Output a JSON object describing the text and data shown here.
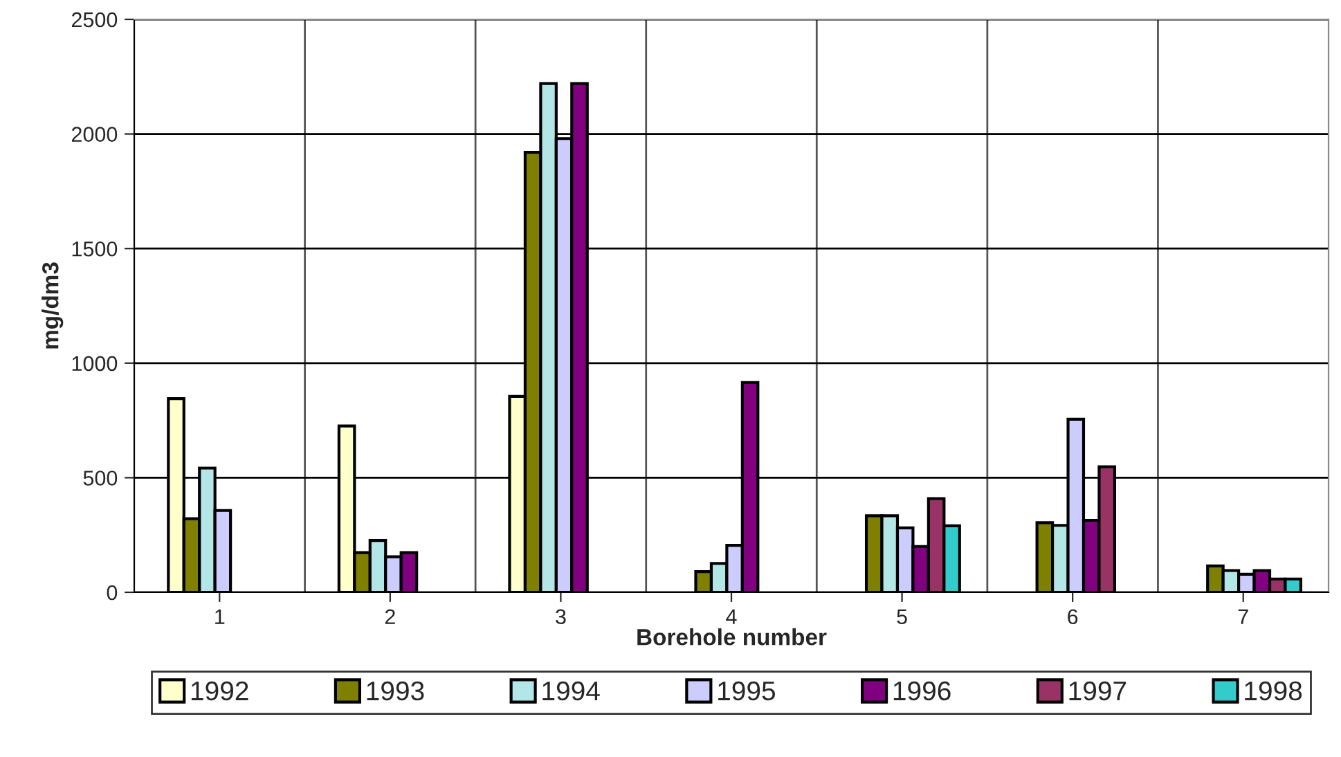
{
  "chart_data": {
    "type": "bar",
    "xlabel": "Borehole number",
    "ylabel": "mg/dm3",
    "categories": [
      "1",
      "2",
      "3",
      "4",
      "5",
      "6",
      "7"
    ],
    "series": [
      {
        "name": "1992",
        "color": "#ffffcc",
        "values": [
          845,
          726,
          855,
          null,
          null,
          null,
          null
        ]
      },
      {
        "name": "1993",
        "color": "#808000",
        "values": [
          321,
          173,
          1920,
          90,
          334,
          304,
          115
        ]
      },
      {
        "name": "1994",
        "color": "#b3e6e6",
        "values": [
          542,
          226,
          2220,
          126,
          334,
          292,
          95
        ]
      },
      {
        "name": "1995",
        "color": "#ccccff",
        "values": [
          357,
          155,
          1980,
          205,
          281,
          755,
          79
        ]
      },
      {
        "name": "1996",
        "color": "#800080",
        "values": [
          null,
          173,
          2220,
          915,
          200,
          314,
          95
        ]
      },
      {
        "name": "1997",
        "color": "#993366",
        "values": [
          null,
          null,
          null,
          null,
          409,
          548,
          58
        ]
      },
      {
        "name": "1998",
        "color": "#33cccc",
        "values": [
          null,
          null,
          null,
          null,
          290,
          null,
          58
        ]
      }
    ],
    "ylim": [
      0,
      2500
    ],
    "yticks": [
      0,
      500,
      1000,
      1500,
      2000,
      2500
    ],
    "grid": true,
    "legend": "bottom"
  }
}
